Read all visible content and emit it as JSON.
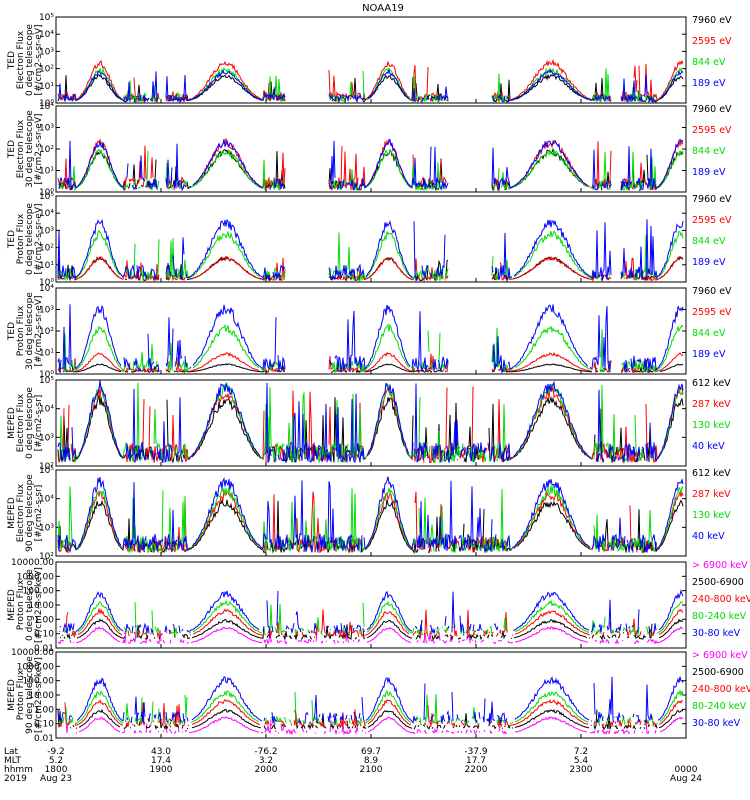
{
  "title": "NOAA19",
  "panels": [
    {
      "ylabel": [
        "TED",
        "Electron Flux",
        "0 deg telescope",
        "[#/cm2-s-sr-eV]"
      ],
      "yticks": [
        "10⁰",
        "10¹",
        "10²",
        "10³",
        "10⁴",
        "10⁵"
      ],
      "legend": [
        {
          "text": "7960 eV",
          "color": "#000000"
        },
        {
          "text": "2595 eV",
          "color": "#ff0000"
        },
        {
          "text": "844 eV",
          "color": "#00dd00"
        },
        {
          "text": "189 eV",
          "color": "#0000ff"
        }
      ]
    },
    {
      "ylabel": [
        "TED",
        "Electron Flux",
        "30 deg telescope",
        "[#/cm2-s-sr-eV]"
      ],
      "yticks": [
        "10⁰",
        "10¹",
        "10²",
        "10³",
        "10⁴"
      ],
      "legend": [
        {
          "text": "7960 eV",
          "color": "#000000"
        },
        {
          "text": "2595 eV",
          "color": "#ff0000"
        },
        {
          "text": "844 eV",
          "color": "#00dd00"
        },
        {
          "text": "189 eV",
          "color": "#0000ff"
        }
      ]
    },
    {
      "ylabel": [
        "TED",
        "Proton Flux",
        "0 deg telescope",
        "[#/cm2-s-sr-eV]"
      ],
      "yticks": [
        "10⁰",
        "10¹",
        "10²",
        "10³",
        "10⁴",
        "10⁵"
      ],
      "legend": [
        {
          "text": "7960 eV",
          "color": "#000000"
        },
        {
          "text": "2595 eV",
          "color": "#ff0000"
        },
        {
          "text": "844 eV",
          "color": "#00dd00"
        },
        {
          "text": "189 eV",
          "color": "#0000ff"
        }
      ]
    },
    {
      "ylabel": [
        "TED",
        "Proton Flux",
        "30 deg telescope",
        "[#/cm2-s-sr-eV]"
      ],
      "yticks": [
        "10⁰",
        "10¹",
        "10²",
        "10³",
        "10⁴"
      ],
      "legend": [
        {
          "text": "7960 eV",
          "color": "#000000"
        },
        {
          "text": "2595 eV",
          "color": "#ff0000"
        },
        {
          "text": "844 eV",
          "color": "#00dd00"
        },
        {
          "text": "189 eV",
          "color": "#0000ff"
        }
      ]
    },
    {
      "ylabel": [
        "MEPED",
        "Electron Flux",
        "0 deg telescope",
        "[#/cm2-s-sr]"
      ],
      "yticks": [
        "10²",
        "10³",
        "10⁴",
        "10⁵"
      ],
      "legend": [
        {
          "text": "612 keV",
          "color": "#000000"
        },
        {
          "text": "287 keV",
          "color": "#ff0000"
        },
        {
          "text": "130 keV",
          "color": "#00dd00"
        },
        {
          "text": "40 keV",
          "color": "#0000ff"
        }
      ]
    },
    {
      "ylabel": [
        "MEPED",
        "Electron Flux",
        "90 deg telescope",
        "[#/cm2-s-sr]"
      ],
      "yticks": [
        "10²",
        "10³",
        "10⁴",
        "10⁵"
      ],
      "legend": [
        {
          "text": "612 keV",
          "color": "#000000"
        },
        {
          "text": "287 keV",
          "color": "#ff0000"
        },
        {
          "text": "130 keV",
          "color": "#00dd00"
        },
        {
          "text": "40 keV",
          "color": "#0000ff"
        }
      ]
    },
    {
      "ylabel": [
        "MEPED",
        "Proton Flux",
        "0 deg telescope",
        "[#/cm2-s-sr-keV]"
      ],
      "yticks": [
        "0.01",
        "0.10",
        "1.00",
        "10.00",
        "100.00",
        "1000.00",
        "10000.00"
      ],
      "legend": [
        {
          "text": "> 6900 keV",
          "color": "#ff00ff"
        },
        {
          "text": "2500-6900",
          "color": "#000000"
        },
        {
          "text": "240-800 keV",
          "color": "#ff0000"
        },
        {
          "text": "80-240 keV",
          "color": "#00dd00"
        },
        {
          "text": "30-80 keV",
          "color": "#0000ff"
        }
      ]
    },
    {
      "ylabel": [
        "MEPED",
        "Proton Flux",
        "90 deg telescope",
        "[#/cm2-s-sr-keV]"
      ],
      "yticks": [
        "0.01",
        "0.10",
        "1.00",
        "10.00",
        "100.00",
        "1000.00",
        "10000.00"
      ],
      "legend": [
        {
          "text": "> 6900 keV",
          "color": "#ff00ff"
        },
        {
          "text": "2500-6900",
          "color": "#000000"
        },
        {
          "text": "240-800 keV",
          "color": "#ff0000"
        },
        {
          "text": "80-240 keV",
          "color": "#00dd00"
        },
        {
          "text": "30-80 keV",
          "color": "#0000ff"
        }
      ]
    }
  ],
  "time_axis": {
    "row_labels": [
      "Lat",
      "MLT",
      "hhmm",
      "2019"
    ],
    "columns": [
      {
        "lat": "-9.2",
        "mlt": "5.2",
        "hhmm": "1800",
        "date": "Aug 23"
      },
      {
        "lat": "43.0",
        "mlt": "17.4",
        "hhmm": "1900",
        "date": ""
      },
      {
        "lat": "-76.2",
        "mlt": "3.2",
        "hhmm": "2000",
        "date": ""
      },
      {
        "lat": "69.7",
        "mlt": "8.9",
        "hhmm": "2100",
        "date": ""
      },
      {
        "lat": "-37.9",
        "mlt": "17.7",
        "hhmm": "2200",
        "date": ""
      },
      {
        "lat": "7.2",
        "mlt": "5.4",
        "hhmm": "2300",
        "date": ""
      },
      {
        "lat": "",
        "mlt": "",
        "hhmm": "0000",
        "date": "Aug 24"
      }
    ]
  },
  "chart_data": {
    "type": "line",
    "title": "NOAA19",
    "x_range": [
      "1800",
      "0000"
    ],
    "grid": false,
    "legend_placement": "right",
    "pass_centers_hhmm": [
      "1825",
      "1937",
      "2110",
      "2243",
      "2357"
    ],
    "panels": [
      {
        "name": "TED Electron Flux 0 deg",
        "y_scale": "log",
        "ylim": [
          1,
          1000000
        ],
        "series": [
          {
            "name": "7960 eV",
            "peak": 100
          },
          {
            "name": "2595 eV",
            "peak": 1000
          },
          {
            "name": "844 eV",
            "peak": 300
          },
          {
            "name": "189 eV",
            "peak": 200
          }
        ]
      },
      {
        "name": "TED Electron Flux 30 deg",
        "y_scale": "log",
        "ylim": [
          1,
          10000
        ],
        "series": [
          {
            "name": "7960 eV",
            "peak": 100
          },
          {
            "name": "2595 eV",
            "peak": 300
          },
          {
            "name": "844 eV",
            "peak": 100
          },
          {
            "name": "189 eV",
            "peak": 300
          }
        ]
      },
      {
        "name": "TED Proton Flux 0 deg",
        "y_scale": "log",
        "ylim": [
          1,
          100000
        ],
        "series": [
          {
            "name": "7960 eV",
            "peak": 30
          },
          {
            "name": "2595 eV",
            "peak": 30
          },
          {
            "name": "844 eV",
            "peak": 1000
          },
          {
            "name": "189 eV",
            "peak": 5000
          }
        ]
      },
      {
        "name": "TED Proton Flux 30 deg",
        "y_scale": "log",
        "ylim": [
          1,
          10000
        ],
        "series": [
          {
            "name": "7960 eV",
            "peak": 3
          },
          {
            "name": "2595 eV",
            "peak": 10
          },
          {
            "name": "844 eV",
            "peak": 200
          },
          {
            "name": "189 eV",
            "peak": 2000
          }
        ]
      },
      {
        "name": "MEPED Electron Flux 0 deg",
        "y_scale": "log",
        "ylim": [
          100,
          100000
        ],
        "series": [
          {
            "name": "612 keV",
            "peak": 30000
          },
          {
            "name": "287 keV",
            "peak": 60000
          },
          {
            "name": "130 keV",
            "peak": 80000
          },
          {
            "name": "40 keV",
            "peak": 100000
          }
        ]
      },
      {
        "name": "MEPED Electron Flux 90 deg",
        "y_scale": "log",
        "ylim": [
          100,
          100000
        ],
        "series": [
          {
            "name": "612 keV",
            "peak": 10000
          },
          {
            "name": "287 keV",
            "peak": 20000
          },
          {
            "name": "130 keV",
            "peak": 30000
          },
          {
            "name": "40 keV",
            "peak": 60000
          }
        ]
      },
      {
        "name": "MEPED Proton Flux 0 deg",
        "y_scale": "log",
        "ylim": [
          0.01,
          10000
        ],
        "series": [
          {
            "name": "> 6900 keV",
            "peak": 0.3
          },
          {
            "name": "2500-6900",
            "peak": 1
          },
          {
            "name": "240-800 keV",
            "peak": 5
          },
          {
            "name": "80-240 keV",
            "peak": 20
          },
          {
            "name": "30-80 keV",
            "peak": 100
          }
        ]
      },
      {
        "name": "MEPED Proton Flux 90 deg",
        "y_scale": "log",
        "ylim": [
          0.01,
          10000
        ],
        "series": [
          {
            "name": "> 6900 keV",
            "peak": 0.3
          },
          {
            "name": "2500-6900",
            "peak": 1
          },
          {
            "name": "240-800 keV",
            "peak": 5
          },
          {
            "name": "80-240 keV",
            "peak": 20
          },
          {
            "name": "30-80 keV",
            "peak": 200
          }
        ]
      }
    ]
  }
}
